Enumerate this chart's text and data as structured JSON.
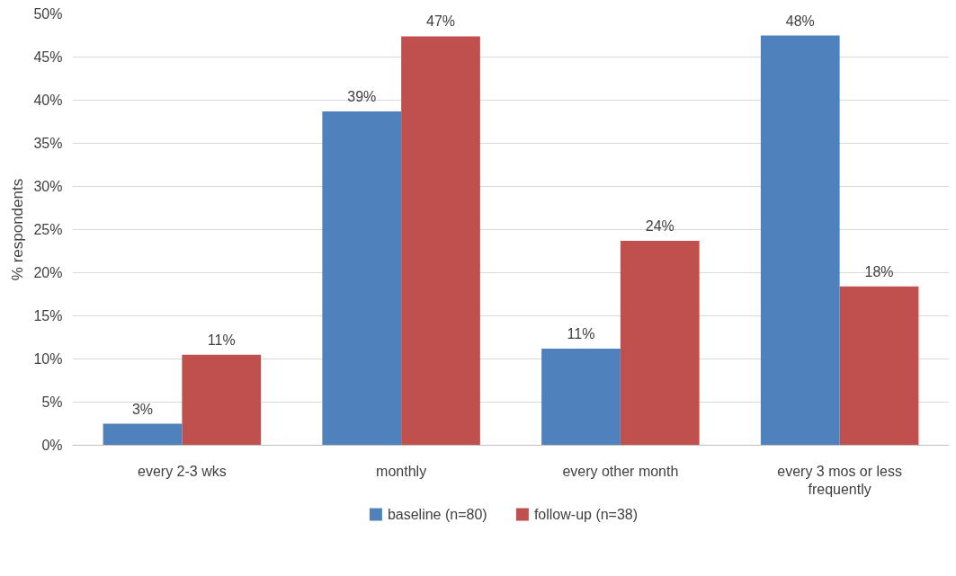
{
  "chart_data": {
    "type": "bar",
    "ylabel": "% respondents",
    "categories": [
      "every 2-3 wks",
      "monthly",
      "every other month",
      "every 3 mos or less frequently"
    ],
    "series": [
      {
        "name": "baseline (n=80)",
        "color": "#4f81bd",
        "values": [
          2.5,
          38.7,
          11.2,
          47.5
        ],
        "value_labels": [
          "3%",
          "39%",
          "11%",
          "48%"
        ]
      },
      {
        "name": "follow-up (n=38)",
        "color": "#c0504d",
        "values": [
          10.5,
          47.4,
          23.7,
          18.4
        ],
        "value_labels": [
          "11%",
          "47%",
          "24%",
          "18%"
        ]
      }
    ],
    "ylim": [
      0,
      50
    ],
    "yticks": [
      {
        "value": 0,
        "label": "0%"
      },
      {
        "value": 5,
        "label": "5%"
      },
      {
        "value": 10,
        "label": "10%"
      },
      {
        "value": 15,
        "label": "15%"
      },
      {
        "value": 20,
        "label": "20%"
      },
      {
        "value": 25,
        "label": "25%"
      },
      {
        "value": 30,
        "label": "30%"
      },
      {
        "value": 35,
        "label": "35%"
      },
      {
        "value": 40,
        "label": "40%"
      },
      {
        "value": 45,
        "label": "45%"
      },
      {
        "value": 50,
        "label": "50%"
      }
    ],
    "grid": "y",
    "legend": "bottom"
  }
}
